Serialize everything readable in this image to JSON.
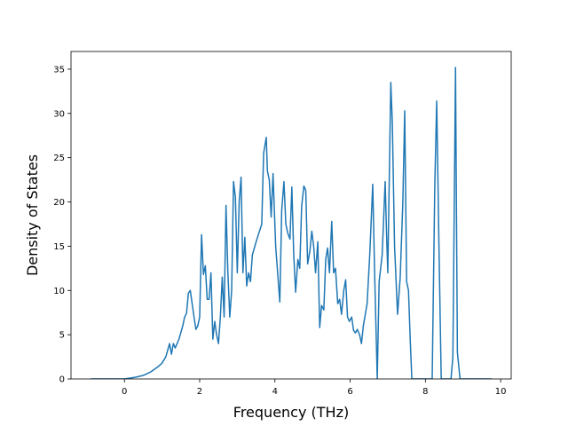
{
  "chart_data": {
    "type": "line",
    "x_label": "Frequency (THz)",
    "y_label": "Density of States",
    "x": [
      -0.9,
      0,
      0.3,
      0.5,
      0.7,
      0.9,
      1.0,
      1.1,
      1.2,
      1.25,
      1.3,
      1.35,
      1.45,
      1.55,
      1.6,
      1.65,
      1.7,
      1.75,
      1.8,
      1.85,
      1.9,
      1.95,
      2.0,
      2.05,
      2.1,
      2.15,
      2.2,
      2.25,
      2.3,
      2.35,
      2.4,
      2.45,
      2.5,
      2.55,
      2.6,
      2.65,
      2.7,
      2.75,
      2.8,
      2.85,
      2.9,
      2.95,
      3.0,
      3.05,
      3.1,
      3.15,
      3.2,
      3.25,
      3.3,
      3.35,
      3.4,
      3.5,
      3.65,
      3.7,
      3.77,
      3.8,
      3.85,
      3.9,
      3.95,
      4.02,
      4.13,
      4.18,
      4.24,
      4.29,
      4.34,
      4.4,
      4.45,
      4.5,
      4.55,
      4.61,
      4.66,
      4.71,
      4.77,
      4.82,
      4.87,
      4.93,
      4.98,
      5.03,
      5.08,
      5.14,
      5.19,
      5.24,
      5.3,
      5.35,
      5.4,
      5.45,
      5.51,
      5.56,
      5.61,
      5.67,
      5.72,
      5.77,
      5.83,
      5.88,
      5.93,
      5.98,
      6.04,
      6.09,
      6.14,
      6.19,
      6.25,
      6.3,
      6.35,
      6.45,
      6.52,
      6.6,
      6.65,
      6.72,
      6.77,
      6.85,
      6.93,
      6.97,
      7.0,
      7.08,
      7.12,
      7.18,
      7.26,
      7.33,
      7.4,
      7.45,
      7.5,
      7.55,
      7.6,
      7.64,
      8.18,
      8.25,
      8.3,
      8.36,
      8.42,
      8.68,
      8.73,
      8.8,
      8.85,
      8.92,
      9.76
    ],
    "series": [
      {
        "name": "DOS",
        "color": "#1f77b4",
        "values": [
          0,
          0,
          0.2,
          0.4,
          0.8,
          1.4,
          1.8,
          2.5,
          4.0,
          2.8,
          4.0,
          3.5,
          4.5,
          6.0,
          7.0,
          7.4,
          9.7,
          10.0,
          8.5,
          7.0,
          5.6,
          6.0,
          7.0,
          16.3,
          11.8,
          12.8,
          9.0,
          9.0,
          12.0,
          4.5,
          6.5,
          5.0,
          4.0,
          7.0,
          11.5,
          7.0,
          19.6,
          12.0,
          7.0,
          10.0,
          22.3,
          20.5,
          12.0,
          20.0,
          22.8,
          12.0,
          16.0,
          10.5,
          12.0,
          11.0,
          14.0,
          15.5,
          17.5,
          25.5,
          27.3,
          23.5,
          22.5,
          18.3,
          23.2,
          15.0,
          8.7,
          19.0,
          22.3,
          17.5,
          16.5,
          15.8,
          21.7,
          14.0,
          9.8,
          13.5,
          12.5,
          19.5,
          21.8,
          21.3,
          13.0,
          14.5,
          16.7,
          15.0,
          12.0,
          15.5,
          5.8,
          8.3,
          7.8,
          13.5,
          14.8,
          12.0,
          17.8,
          12.0,
          12.5,
          8.5,
          9.0,
          7.3,
          10.0,
          11.2,
          7.0,
          6.5,
          7.0,
          5.5,
          5.2,
          5.6,
          5.0,
          4.0,
          6.0,
          8.5,
          14.0,
          22.0,
          12.0,
          0,
          11.0,
          14.0,
          22.3,
          16.0,
          12.0,
          33.5,
          29.0,
          15.0,
          7.3,
          11.5,
          20.0,
          30.3,
          11.0,
          10.0,
          4.0,
          0,
          0,
          22.0,
          31.4,
          15.0,
          0,
          0,
          2.5,
          35.2,
          3.0,
          0,
          0
        ]
      }
    ],
    "xlim": [
      -1.42,
      10.28
    ],
    "ylim": [
      0,
      37
    ],
    "xticks": [
      0,
      2,
      4,
      6,
      8,
      10
    ],
    "yticks": [
      0,
      5,
      10,
      15,
      20,
      25,
      30,
      35
    ]
  }
}
